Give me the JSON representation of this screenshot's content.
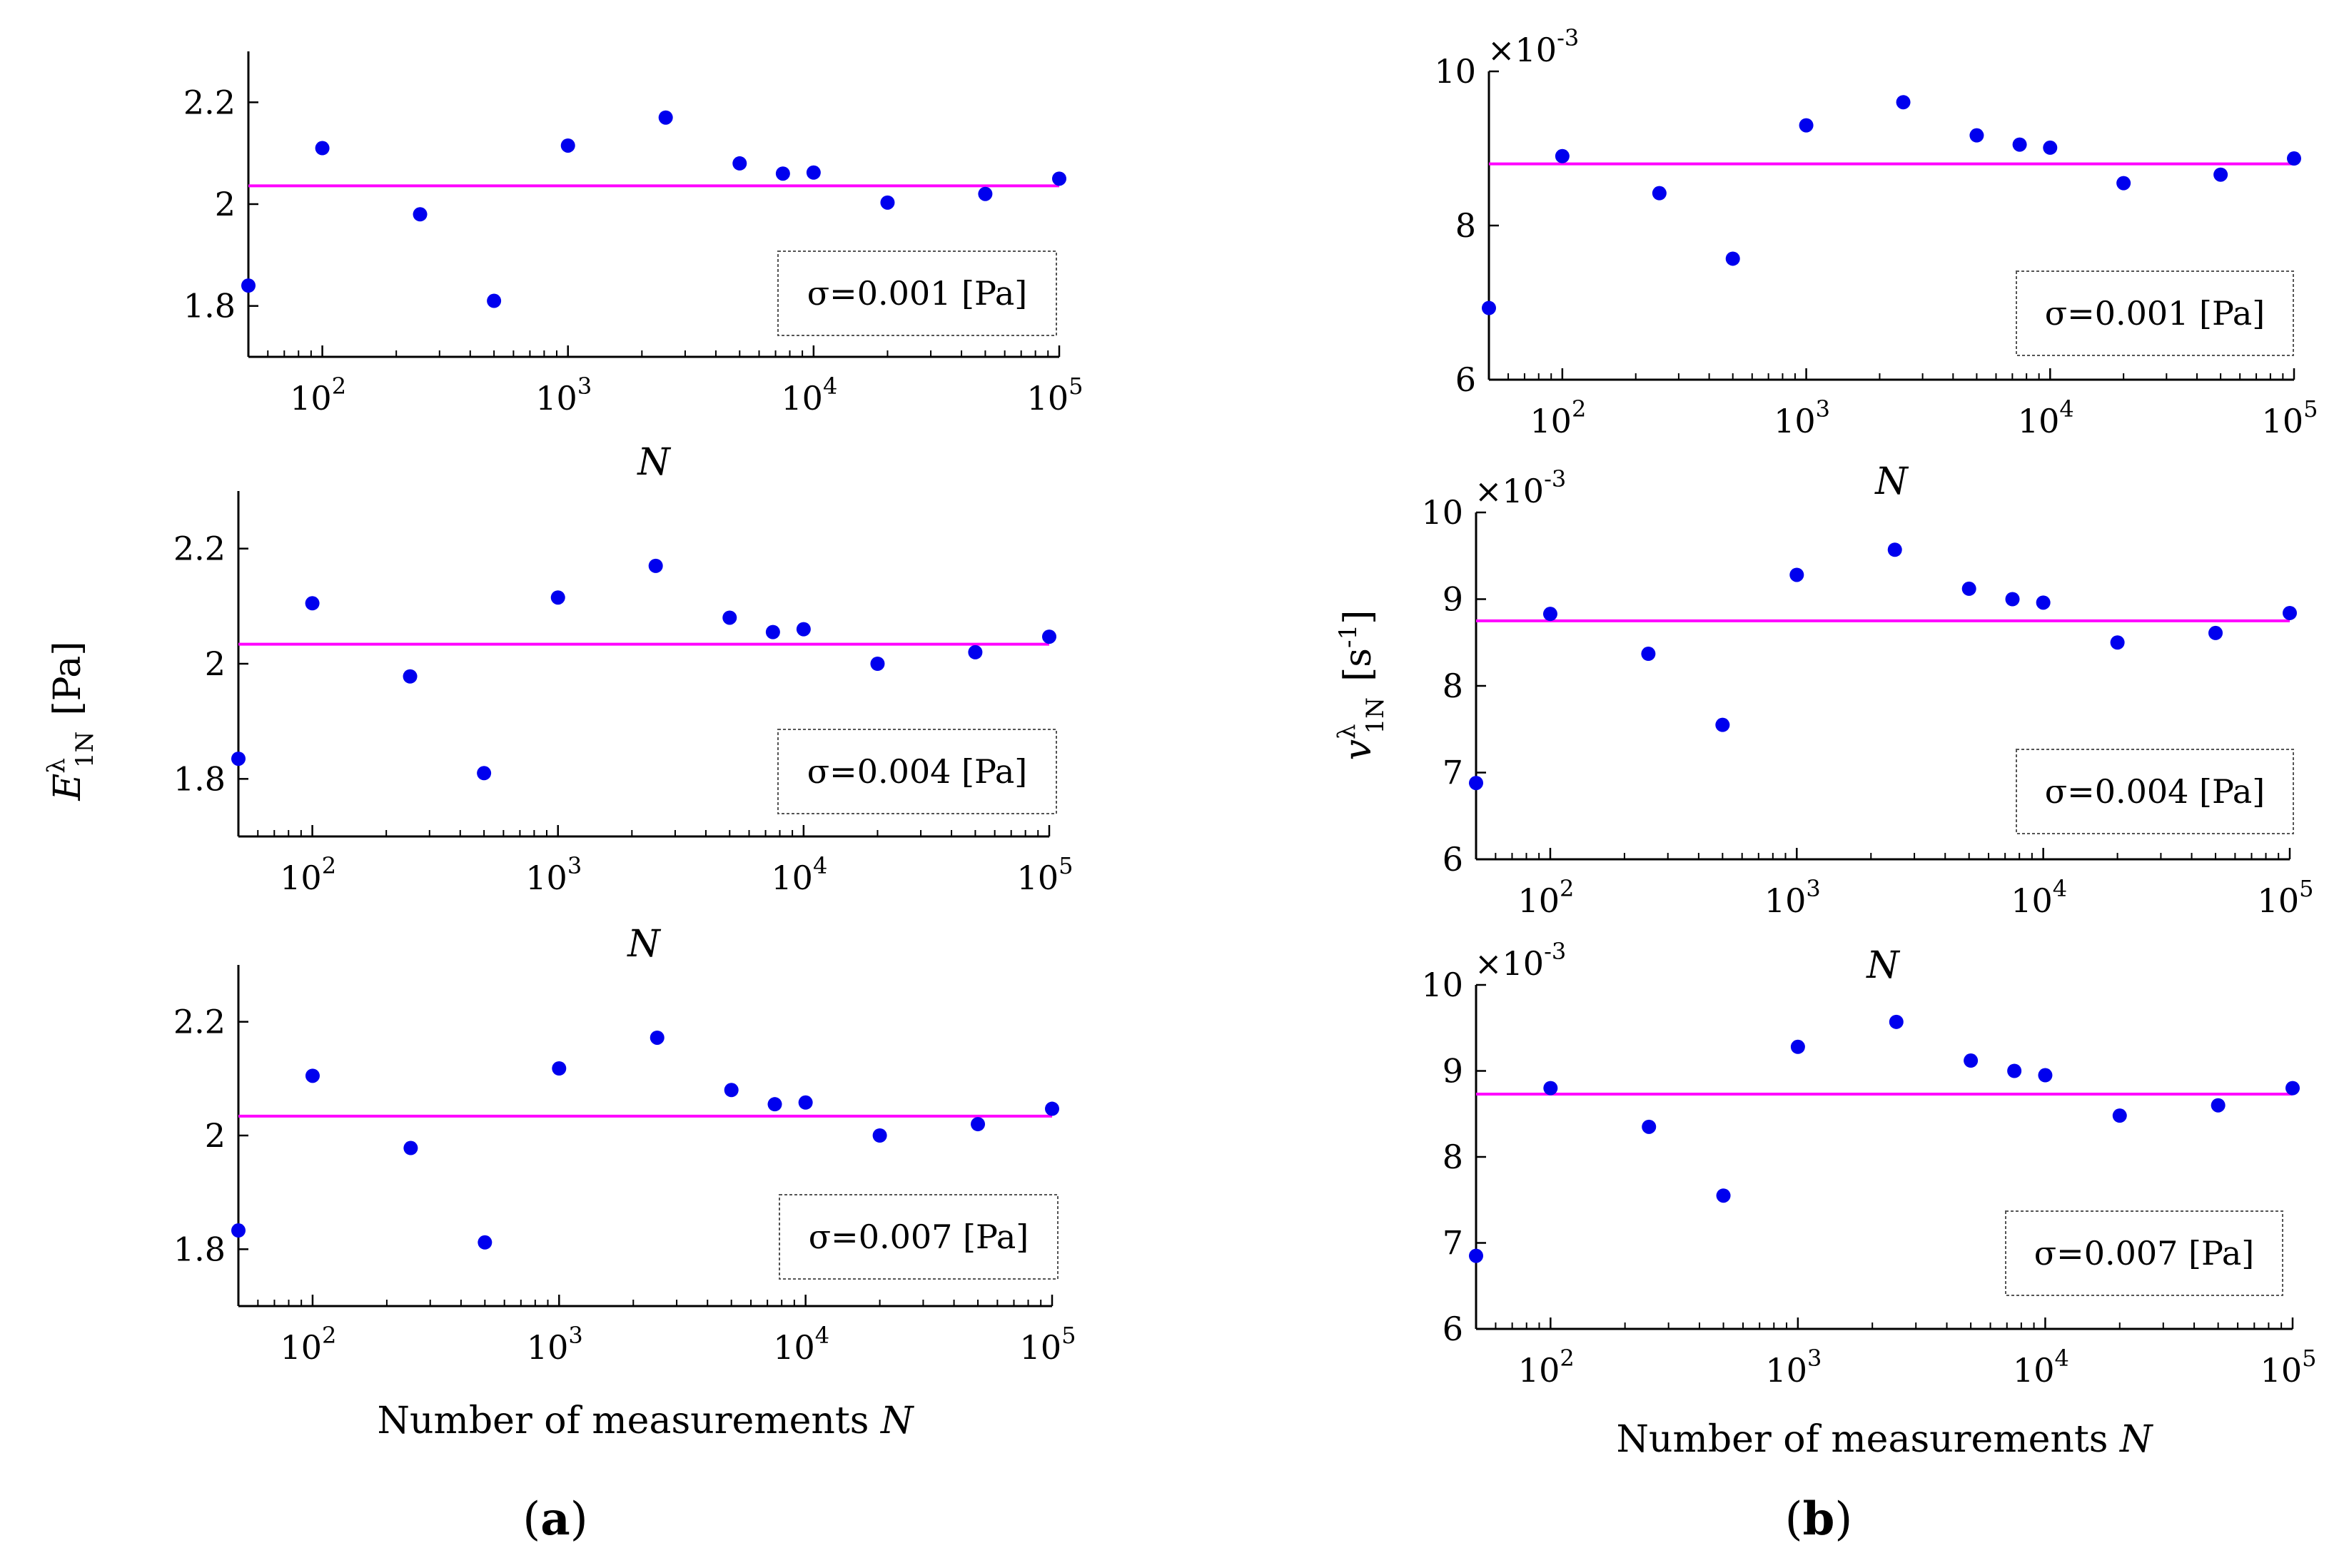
{
  "chart_data": [
    {
      "id": "a1",
      "type": "scatter",
      "x": [
        50,
        100,
        250,
        500,
        1000,
        2500,
        5000,
        7500,
        10000,
        20000,
        50000,
        100000
      ],
      "values": [
        1.84,
        2.11,
        1.98,
        1.81,
        2.115,
        2.17,
        2.08,
        2.06,
        2.062,
        2.003,
        2.02,
        2.05
      ],
      "mean": 2.036,
      "xscale": "log",
      "xlim": [
        50,
        100000
      ],
      "ylim": [
        1.7,
        2.3
      ],
      "yticks": [
        1.8,
        2,
        2.2
      ],
      "ytick_labels": [
        "1.8",
        "2",
        "2.2"
      ],
      "xlabel": "N",
      "legend": "σ=0.001 [Pa]"
    },
    {
      "id": "a2",
      "type": "scatter",
      "x": [
        50,
        100,
        250,
        500,
        1000,
        2500,
        5000,
        7500,
        10000,
        20000,
        50000,
        100000
      ],
      "values": [
        1.835,
        2.105,
        1.978,
        1.81,
        2.115,
        2.17,
        2.08,
        2.055,
        2.06,
        2.0,
        2.02,
        2.047
      ],
      "mean": 2.034,
      "xscale": "log",
      "xlim": [
        50,
        100000
      ],
      "ylim": [
        1.7,
        2.3
      ],
      "yticks": [
        1.8,
        2,
        2.2
      ],
      "ytick_labels": [
        "1.8",
        "2",
        "2.2"
      ],
      "xlabel": "N",
      "legend": "σ=0.004 [Pa]"
    },
    {
      "id": "a3",
      "type": "scatter",
      "x": [
        50,
        100,
        250,
        500,
        1000,
        2500,
        5000,
        7500,
        10000,
        20000,
        50000,
        100000
      ],
      "values": [
        1.833,
        2.105,
        1.978,
        1.812,
        2.118,
        2.172,
        2.08,
        2.055,
        2.058,
        2.0,
        2.02,
        2.047
      ],
      "mean": 2.034,
      "xscale": "log",
      "xlim": [
        50,
        100000
      ],
      "ylim": [
        1.7,
        2.3
      ],
      "yticks": [
        1.8,
        2,
        2.2
      ],
      "ytick_labels": [
        "1.8",
        "2",
        "2.2"
      ],
      "xlabel": "Number of measurements N",
      "legend": "σ=0.007 [Pa]"
    },
    {
      "id": "b1",
      "type": "scatter",
      "x": [
        50,
        100,
        250,
        500,
        1000,
        2500,
        5000,
        7500,
        10000,
        20000,
        50000,
        100000
      ],
      "values": [
        6.93,
        8.9,
        8.42,
        7.57,
        9.3,
        9.6,
        9.17,
        9.05,
        9.01,
        8.55,
        8.66,
        8.87
      ],
      "mean": 8.8,
      "xscale": "log",
      "xlim": [
        50,
        100000
      ],
      "ylim": [
        6,
        10
      ],
      "yticks": [
        6,
        8,
        10
      ],
      "ytick_labels": [
        "6",
        "8",
        "10"
      ],
      "multiplier": "×10",
      "multiplier_exp": "-3",
      "xlabel": "N",
      "legend": "σ=0.001 [Pa]"
    },
    {
      "id": "b2",
      "type": "scatter",
      "x": [
        50,
        100,
        250,
        500,
        1000,
        2500,
        5000,
        7500,
        10000,
        20000,
        50000,
        100000
      ],
      "values": [
        6.88,
        8.83,
        8.37,
        7.55,
        9.28,
        9.57,
        9.12,
        9.0,
        8.96,
        8.5,
        8.61,
        8.84
      ],
      "mean": 8.75,
      "xscale": "log",
      "xlim": [
        50,
        100000
      ],
      "ylim": [
        6,
        10
      ],
      "yticks": [
        6,
        7,
        8,
        9,
        10
      ],
      "ytick_labels": [
        "6",
        "7",
        "8",
        "9",
        "10"
      ],
      "multiplier": "×10",
      "multiplier_exp": "-3",
      "xlabel": "N",
      "legend": "σ=0.004 [Pa]"
    },
    {
      "id": "b3",
      "type": "scatter",
      "x": [
        50,
        100,
        250,
        500,
        1000,
        2500,
        5000,
        7500,
        10000,
        20000,
        50000,
        100000
      ],
      "values": [
        6.85,
        8.8,
        8.35,
        7.55,
        9.28,
        9.57,
        9.12,
        9.0,
        8.95,
        8.48,
        8.6,
        8.8
      ],
      "mean": 8.73,
      "xscale": "log",
      "xlim": [
        50,
        100000
      ],
      "ylim": [
        6,
        10
      ],
      "yticks": [
        6,
        7,
        8,
        9,
        10
      ],
      "ytick_labels": [
        "6",
        "7",
        "8",
        "9",
        "10"
      ],
      "multiplier": "×10",
      "multiplier_exp": "-3",
      "xlabel": "Number of measurements N",
      "legend": "σ=0.007 [Pa]"
    }
  ],
  "xtick_base": "10",
  "xtick_exponents": [
    "2",
    "3",
    "4",
    "5"
  ],
  "ylabel_a": {
    "symbol": "E",
    "superscript": "λ",
    "subscript": "1N",
    "unit": "[Pa]"
  },
  "ylabel_b": {
    "symbol": "v",
    "superscript": "λ",
    "subscript": "1N",
    "unit": "[s",
    "unit_exp": "-1",
    "unit_close": "]"
  },
  "panel_labels": {
    "a": "a",
    "b": "b"
  },
  "colors": {
    "points": "#0000ee",
    "mean_line": "#ff00ff"
  }
}
